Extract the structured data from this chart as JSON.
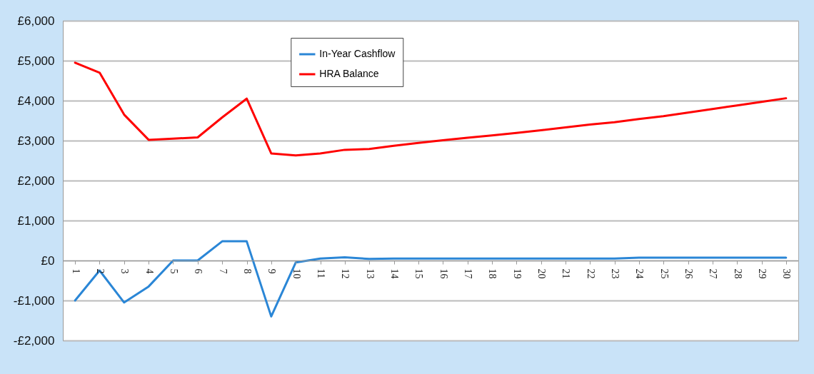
{
  "chart_data": {
    "type": "line",
    "categories": [
      "1",
      "2",
      "3",
      "4",
      "5",
      "6",
      "7",
      "8",
      "9",
      "10",
      "11",
      "12",
      "13",
      "14",
      "15",
      "16",
      "17",
      "18",
      "19",
      "20",
      "21",
      "22",
      "23",
      "24",
      "25",
      "26",
      "27",
      "28",
      "29",
      "30"
    ],
    "series": [
      {
        "name": "In-Year Cashflow",
        "color": "#2a86d6",
        "values": [
          -1000,
          -250,
          -1050,
          -650,
          0,
          0,
          480,
          480,
          -1400,
          -50,
          50,
          80,
          40,
          50,
          50,
          50,
          50,
          50,
          50,
          50,
          50,
          50,
          50,
          70,
          70,
          70,
          70,
          70,
          70,
          70
        ]
      },
      {
        "name": "HRA Balance",
        "color": "#ff0000",
        "values": [
          4950,
          4700,
          3650,
          3020,
          3050,
          3080,
          3580,
          4050,
          2680,
          2630,
          2680,
          2770,
          2790,
          2870,
          2940,
          3010,
          3070,
          3130,
          3190,
          3260,
          3330,
          3400,
          3460,
          3540,
          3610,
          3700,
          3790,
          3880,
          3970,
          4060
        ]
      }
    ],
    "ylim": [
      -2000,
      6000
    ],
    "yticks": [
      {
        "value": -2000,
        "label": "-£2,000"
      },
      {
        "value": -1000,
        "label": "-£1,000"
      },
      {
        "value": 0,
        "label": "£0"
      },
      {
        "value": 1000,
        "label": "£1,000"
      },
      {
        "value": 2000,
        "label": "£2,000"
      },
      {
        "value": 3000,
        "label": "£3,000"
      },
      {
        "value": 4000,
        "label": "£4,000"
      },
      {
        "value": 5000,
        "label": "£5,000"
      },
      {
        "value": 6000,
        "label": "£6,000"
      }
    ],
    "grid": "y",
    "legend": "top",
    "marker": "none",
    "line_style": "solid"
  }
}
